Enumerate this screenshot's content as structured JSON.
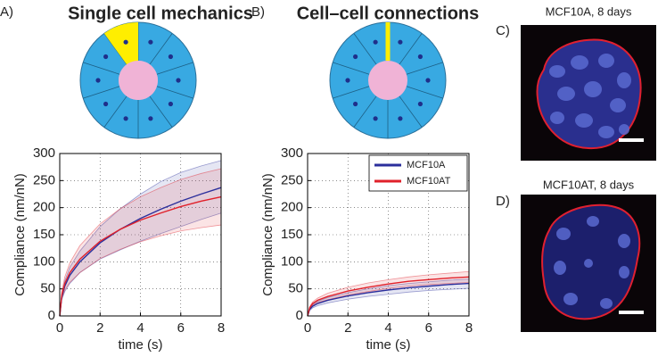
{
  "chart_data": [
    {
      "type": "line",
      "panel_label": "A)",
      "title": "Single cell mechanics",
      "x_label": "time (s)",
      "y_label": "Compliance (nm/nN)",
      "x": [
        0,
        0.1,
        0.25,
        0.5,
        1,
        2,
        3,
        4,
        5,
        6,
        7,
        8
      ],
      "xlim": [
        0,
        8
      ],
      "xticks": [
        0,
        2,
        4,
        6,
        8
      ],
      "ylim": [
        0,
        300
      ],
      "yticks": [
        0,
        50,
        100,
        150,
        200,
        250,
        300
      ],
      "grid": true,
      "legend": false,
      "series": [
        {
          "color": "#2b2f9c",
          "values": [
            0,
            35,
            55,
            75,
            100,
            135,
            160,
            180,
            197,
            212,
            225,
            237
          ],
          "upper": [
            0,
            40,
            65,
            90,
            120,
            165,
            198,
            225,
            248,
            265,
            277,
            287
          ],
          "lower": [
            0,
            30,
            45,
            60,
            80,
            105,
            122,
            138,
            152,
            165,
            178,
            190
          ]
        },
        {
          "color": "#e0202a",
          "values": [
            0,
            38,
            60,
            80,
            105,
            138,
            160,
            177,
            190,
            202,
            212,
            220
          ],
          "upper": [
            0,
            45,
            72,
            98,
            130,
            170,
            198,
            220,
            237,
            252,
            263,
            272
          ],
          "lower": [
            0,
            32,
            48,
            62,
            80,
            106,
            123,
            137,
            148,
            157,
            163,
            168
          ]
        }
      ]
    },
    {
      "type": "line",
      "panel_label": "B)",
      "title": "Cell–cell connections",
      "x_label": "time (s)",
      "y_label": "Compliance (nm/nN)",
      "x": [
        0,
        0.1,
        0.25,
        0.5,
        1,
        2,
        3,
        4,
        5,
        6,
        7,
        8
      ],
      "xlim": [
        0,
        8
      ],
      "xticks": [
        0,
        2,
        4,
        6,
        8
      ],
      "ylim": [
        0,
        300
      ],
      "yticks": [
        0,
        50,
        100,
        150,
        200,
        250,
        300
      ],
      "grid": true,
      "legend": "upper right",
      "series": [
        {
          "name": "MCF10A",
          "color": "#2b2f9c",
          "values": [
            0,
            12,
            18,
            23,
            29,
            37,
            43,
            48,
            52,
            55,
            58,
            60
          ],
          "upper": [
            0,
            14,
            21,
            27,
            34,
            43,
            50,
            56,
            60,
            63,
            66,
            68
          ],
          "lower": [
            0,
            10,
            15,
            19,
            24,
            31,
            36,
            40,
            44,
            47,
            49,
            51
          ]
        },
        {
          "name": "MCF10AT",
          "color": "#e0202a",
          "values": [
            0,
            15,
            23,
            29,
            36,
            46,
            53,
            59,
            64,
            67,
            70,
            72
          ],
          "upper": [
            0,
            17,
            26,
            33,
            42,
            53,
            61,
            67,
            72,
            76,
            79,
            82
          ],
          "lower": [
            0,
            13,
            20,
            25,
            30,
            39,
            45,
            51,
            55,
            58,
            60,
            62
          ]
        }
      ]
    }
  ],
  "images": [
    {
      "panel_label": "C)",
      "title": "MCF10A, 8 days"
    },
    {
      "panel_label": "D)",
      "title": "MCF10AT, 8 days"
    }
  ]
}
